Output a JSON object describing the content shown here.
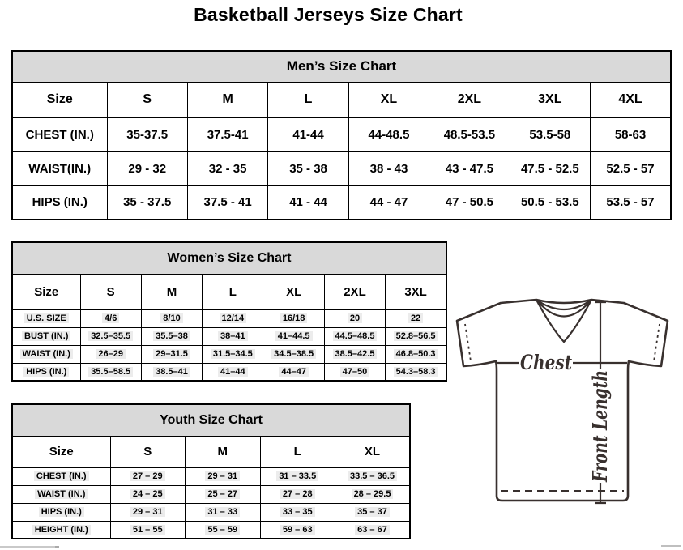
{
  "page_title": "Basketball Jerseys Size Chart",
  "tables": {
    "men": {
      "title": "Men’s Size Chart",
      "columns": [
        "Size",
        "S",
        "M",
        "L",
        "XL",
        "2XL",
        "3XL",
        "4XL"
      ],
      "rows": [
        {
          "label": "CHEST (IN.)",
          "values": [
            "35-37.5",
            "37.5-41",
            "41-44",
            "44-48.5",
            "48.5-53.5",
            "53.5-58",
            "58-63"
          ]
        },
        {
          "label": "WAIST(IN.)",
          "values": [
            "29 - 32",
            "32 - 35",
            "35 - 38",
            "38 - 43",
            "43 - 47.5",
            "47.5 - 52.5",
            "52.5 - 57"
          ]
        },
        {
          "label": "HIPS (IN.)",
          "values": [
            "35 - 37.5",
            "37.5 - 41",
            "41 - 44",
            "44 - 47",
            "47 - 50.5",
            "50.5 - 53.5",
            "53.5 - 57"
          ]
        }
      ]
    },
    "women": {
      "title": "Women’s Size Chart",
      "columns": [
        "Size",
        "S",
        "M",
        "L",
        "XL",
        "2XL",
        "3XL"
      ],
      "rows": [
        {
          "label": "U.S. SIZE",
          "values": [
            "4/6",
            "8/10",
            "12/14",
            "16/18",
            "20",
            "22"
          ]
        },
        {
          "label": "BUST (IN.)",
          "values": [
            "32.5–35.5",
            "35.5–38",
            "38–41",
            "41–44.5",
            "44.5–48.5",
            "52.8–56.5"
          ]
        },
        {
          "label": "WAIST (IN.)",
          "values": [
            "26–29",
            "29–31.5",
            "31.5–34.5",
            "34.5–38.5",
            "38.5–42.5",
            "46.8–50.3"
          ]
        },
        {
          "label": "HIPS (IN.)",
          "values": [
            "35.5–58.5",
            "38.5–41",
            "41–44",
            "44–47",
            "47–50",
            "54.3–58.3"
          ]
        }
      ]
    },
    "youth": {
      "title": "Youth Size Chart",
      "columns": [
        "Size",
        "S",
        "M",
        "L",
        "XL"
      ],
      "rows": [
        {
          "label": "CHEST (IN.)",
          "values": [
            "27 – 29",
            "29 – 31",
            "31 – 33.5",
            "33.5 – 36.5"
          ]
        },
        {
          "label": "WAIST (IN.)",
          "values": [
            "24 – 25",
            "25 – 27",
            "27 – 28",
            "28 – 29.5"
          ]
        },
        {
          "label": "HIPS (IN.)",
          "values": [
            "29 – 31",
            "31 – 33",
            "33 – 35",
            "35 – 37"
          ]
        },
        {
          "label": "HEIGHT (IN.)",
          "values": [
            "51 – 55",
            "55 – 59",
            "59 – 63",
            "63 – 67"
          ]
        }
      ]
    }
  },
  "diagram": {
    "chest_label": "Chest",
    "front_length_label": "Front Length"
  },
  "colors": {
    "table_title_bg": "#d9d9d9",
    "table_border": "#000000",
    "diagram_ink": "#38302e"
  }
}
